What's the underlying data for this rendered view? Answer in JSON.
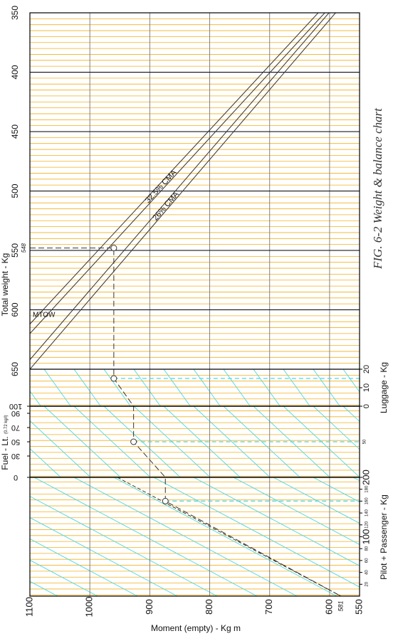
{
  "chart_data": {
    "type": "weight-balance",
    "title": "FIG. 6-2 Weight & balance chart",
    "x_label": "Moment (empty) - Kg m",
    "xlim": [
      1100,
      550
    ],
    "xticks": [
      1100,
      1000,
      900,
      800,
      700,
      600,
      550
    ],
    "y_label": "Total weight - Kg",
    "ylim": [
      350,
      650
    ],
    "yticks": [
      350,
      400,
      450,
      500,
      550,
      600,
      650
    ],
    "luggage": {
      "label": "Luggage - Kg",
      "lim": [
        20,
        0
      ],
      "ticks": [
        20,
        10,
        0
      ]
    },
    "fuel": {
      "label": "Fuel - Lt.",
      "note": "(0.72 kg/l)",
      "lim": [
        100,
        0
      ],
      "ticks": [
        100,
        90,
        70,
        50,
        30,
        0
      ]
    },
    "pilot": {
      "label": "Pilot + Passenger - Kg",
      "lim": [
        200,
        0
      ],
      "ticks": [
        20,
        40,
        60,
        80,
        100,
        120,
        140,
        160,
        180,
        200
      ]
    },
    "envelope": [
      {
        "name": "32.5% CMA",
        "edges": [
          {
            "x": [
              1100,
              619
            ],
            "y": [
              612,
              350
            ]
          },
          {
            "x": [
              1100,
              608
            ],
            "y": [
              620,
              350
            ]
          }
        ]
      },
      {
        "name": "26% CMA",
        "edges": [
          {
            "x": [
              1100,
              601
            ],
            "y": [
              642,
              350
            ]
          },
          {
            "x": [
              1100,
              590
            ],
            "y": [
              650,
              350
            ]
          }
        ]
      }
    ],
    "mtow": "MTOW",
    "example": {
      "points": [
        {
          "section": "weight",
          "moment": 1100,
          "value": 548,
          "circle": false
        },
        {
          "section": "weight",
          "moment": 960,
          "value": 548,
          "circle": true
        },
        {
          "section": "luggage",
          "moment": 960,
          "value": 15,
          "circle": true
        },
        {
          "section": "luggage",
          "moment": 927,
          "value": 0,
          "circle": false
        },
        {
          "section": "fuel",
          "moment": 927,
          "value": 50,
          "circle": true
        },
        {
          "section": "fuel",
          "moment": 874,
          "value": 0,
          "circle": false
        },
        {
          "section": "pilot",
          "moment": 874,
          "value": 160,
          "circle": true
        },
        {
          "section": "pilot",
          "moment": 581,
          "value": 0,
          "circle": false
        }
      ],
      "pilot_line": {
        "x": [
          954,
          581
        ],
        "y": [
          200,
          0
        ]
      }
    },
    "grid": true
  }
}
